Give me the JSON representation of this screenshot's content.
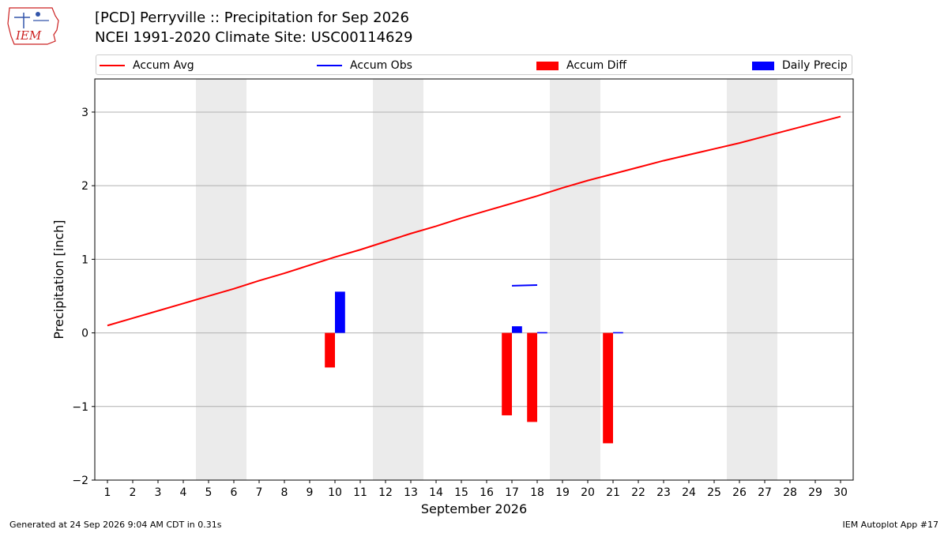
{
  "header": {
    "logo_text": "IEM",
    "title_line1": "[PCD] Perryville :: Precipitation for Sep 2026",
    "title_line2": "NCEI 1991-2020 Climate Site: USC00114629"
  },
  "legend": [
    {
      "label": "Accum Avg",
      "kind": "line",
      "color": "#ff0000"
    },
    {
      "label": "Accum Obs",
      "kind": "line",
      "color": "#0000ff"
    },
    {
      "label": "Accum Diff",
      "kind": "box",
      "color": "#ff0000"
    },
    {
      "label": "Daily Precip",
      "kind": "box",
      "color": "#0000ff"
    }
  ],
  "footer": {
    "left": "Generated at 24 Sep 2026 9:04 AM CDT in 0.31s",
    "right": "IEM Autoplot App #17"
  },
  "chart_data": {
    "type": "bar",
    "title": "[PCD] Perryville :: Precipitation for Sep 2026",
    "subtitle": "NCEI 1991-2020 Climate Site: USC00114629",
    "xlabel": "September 2026",
    "ylabel": "Precipitation [inch]",
    "ylim": [
      -2,
      3.45
    ],
    "xlim": [
      0.5,
      30.5
    ],
    "yticks": [
      -2,
      -1,
      0,
      1,
      2,
      3
    ],
    "xticks": [
      1,
      2,
      3,
      4,
      5,
      6,
      7,
      8,
      9,
      10,
      11,
      12,
      13,
      14,
      15,
      16,
      17,
      18,
      19,
      20,
      21,
      22,
      23,
      24,
      25,
      26,
      27,
      28,
      29,
      30
    ],
    "grid": "horizontal",
    "legend_position": "top",
    "weekend_days": [
      5,
      6,
      12,
      13,
      19,
      20,
      26,
      27
    ],
    "weekend_color": "#ebebeb",
    "series": [
      {
        "name": "Accum Avg",
        "type": "line",
        "color": "#ff0000",
        "x": [
          1,
          2,
          3,
          4,
          5,
          6,
          7,
          8,
          9,
          10,
          11,
          12,
          13,
          14,
          15,
          16,
          17,
          18,
          19,
          20,
          21,
          22,
          23,
          24,
          25,
          26,
          27,
          28,
          29,
          30
        ],
        "values": [
          0.1,
          0.2,
          0.3,
          0.4,
          0.5,
          0.6,
          0.71,
          0.81,
          0.92,
          1.03,
          1.13,
          1.24,
          1.35,
          1.45,
          1.56,
          1.66,
          1.76,
          1.86,
          1.97,
          2.07,
          2.16,
          2.25,
          2.34,
          2.42,
          2.5,
          2.58,
          2.67,
          2.76,
          2.85,
          2.94
        ]
      },
      {
        "name": "Accum Obs",
        "type": "line",
        "color": "#0000ff",
        "x": [
          17,
          18
        ],
        "values": [
          0.64,
          0.65
        ]
      },
      {
        "name": "Accum Diff",
        "type": "bar",
        "color": "#ff0000",
        "x": [
          10,
          17,
          18,
          21
        ],
        "values": [
          -0.47,
          -1.12,
          -1.21,
          -1.5
        ]
      },
      {
        "name": "Daily Precip",
        "type": "bar",
        "color": "#0000ff",
        "x": [
          10,
          17,
          18,
          21
        ],
        "values": [
          0.56,
          0.09,
          0.01,
          0.01
        ]
      }
    ]
  }
}
